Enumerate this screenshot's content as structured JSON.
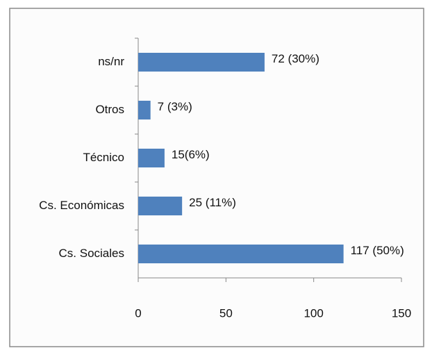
{
  "chart_data": {
    "type": "hbar",
    "categories": [
      "ns/nr",
      "Otros",
      "Técnico",
      "Cs. Económicas",
      "Cs. Sociales"
    ],
    "values": [
      72,
      7,
      15,
      25,
      117
    ],
    "value_labels": [
      "72 (30%)",
      "7 (3%)",
      "15(6%)",
      "25 (11%)",
      "117 (50%)"
    ],
    "color": "#4f81bd",
    "xlim": [
      0,
      150
    ],
    "xticks": [
      0,
      50,
      100,
      150
    ]
  }
}
